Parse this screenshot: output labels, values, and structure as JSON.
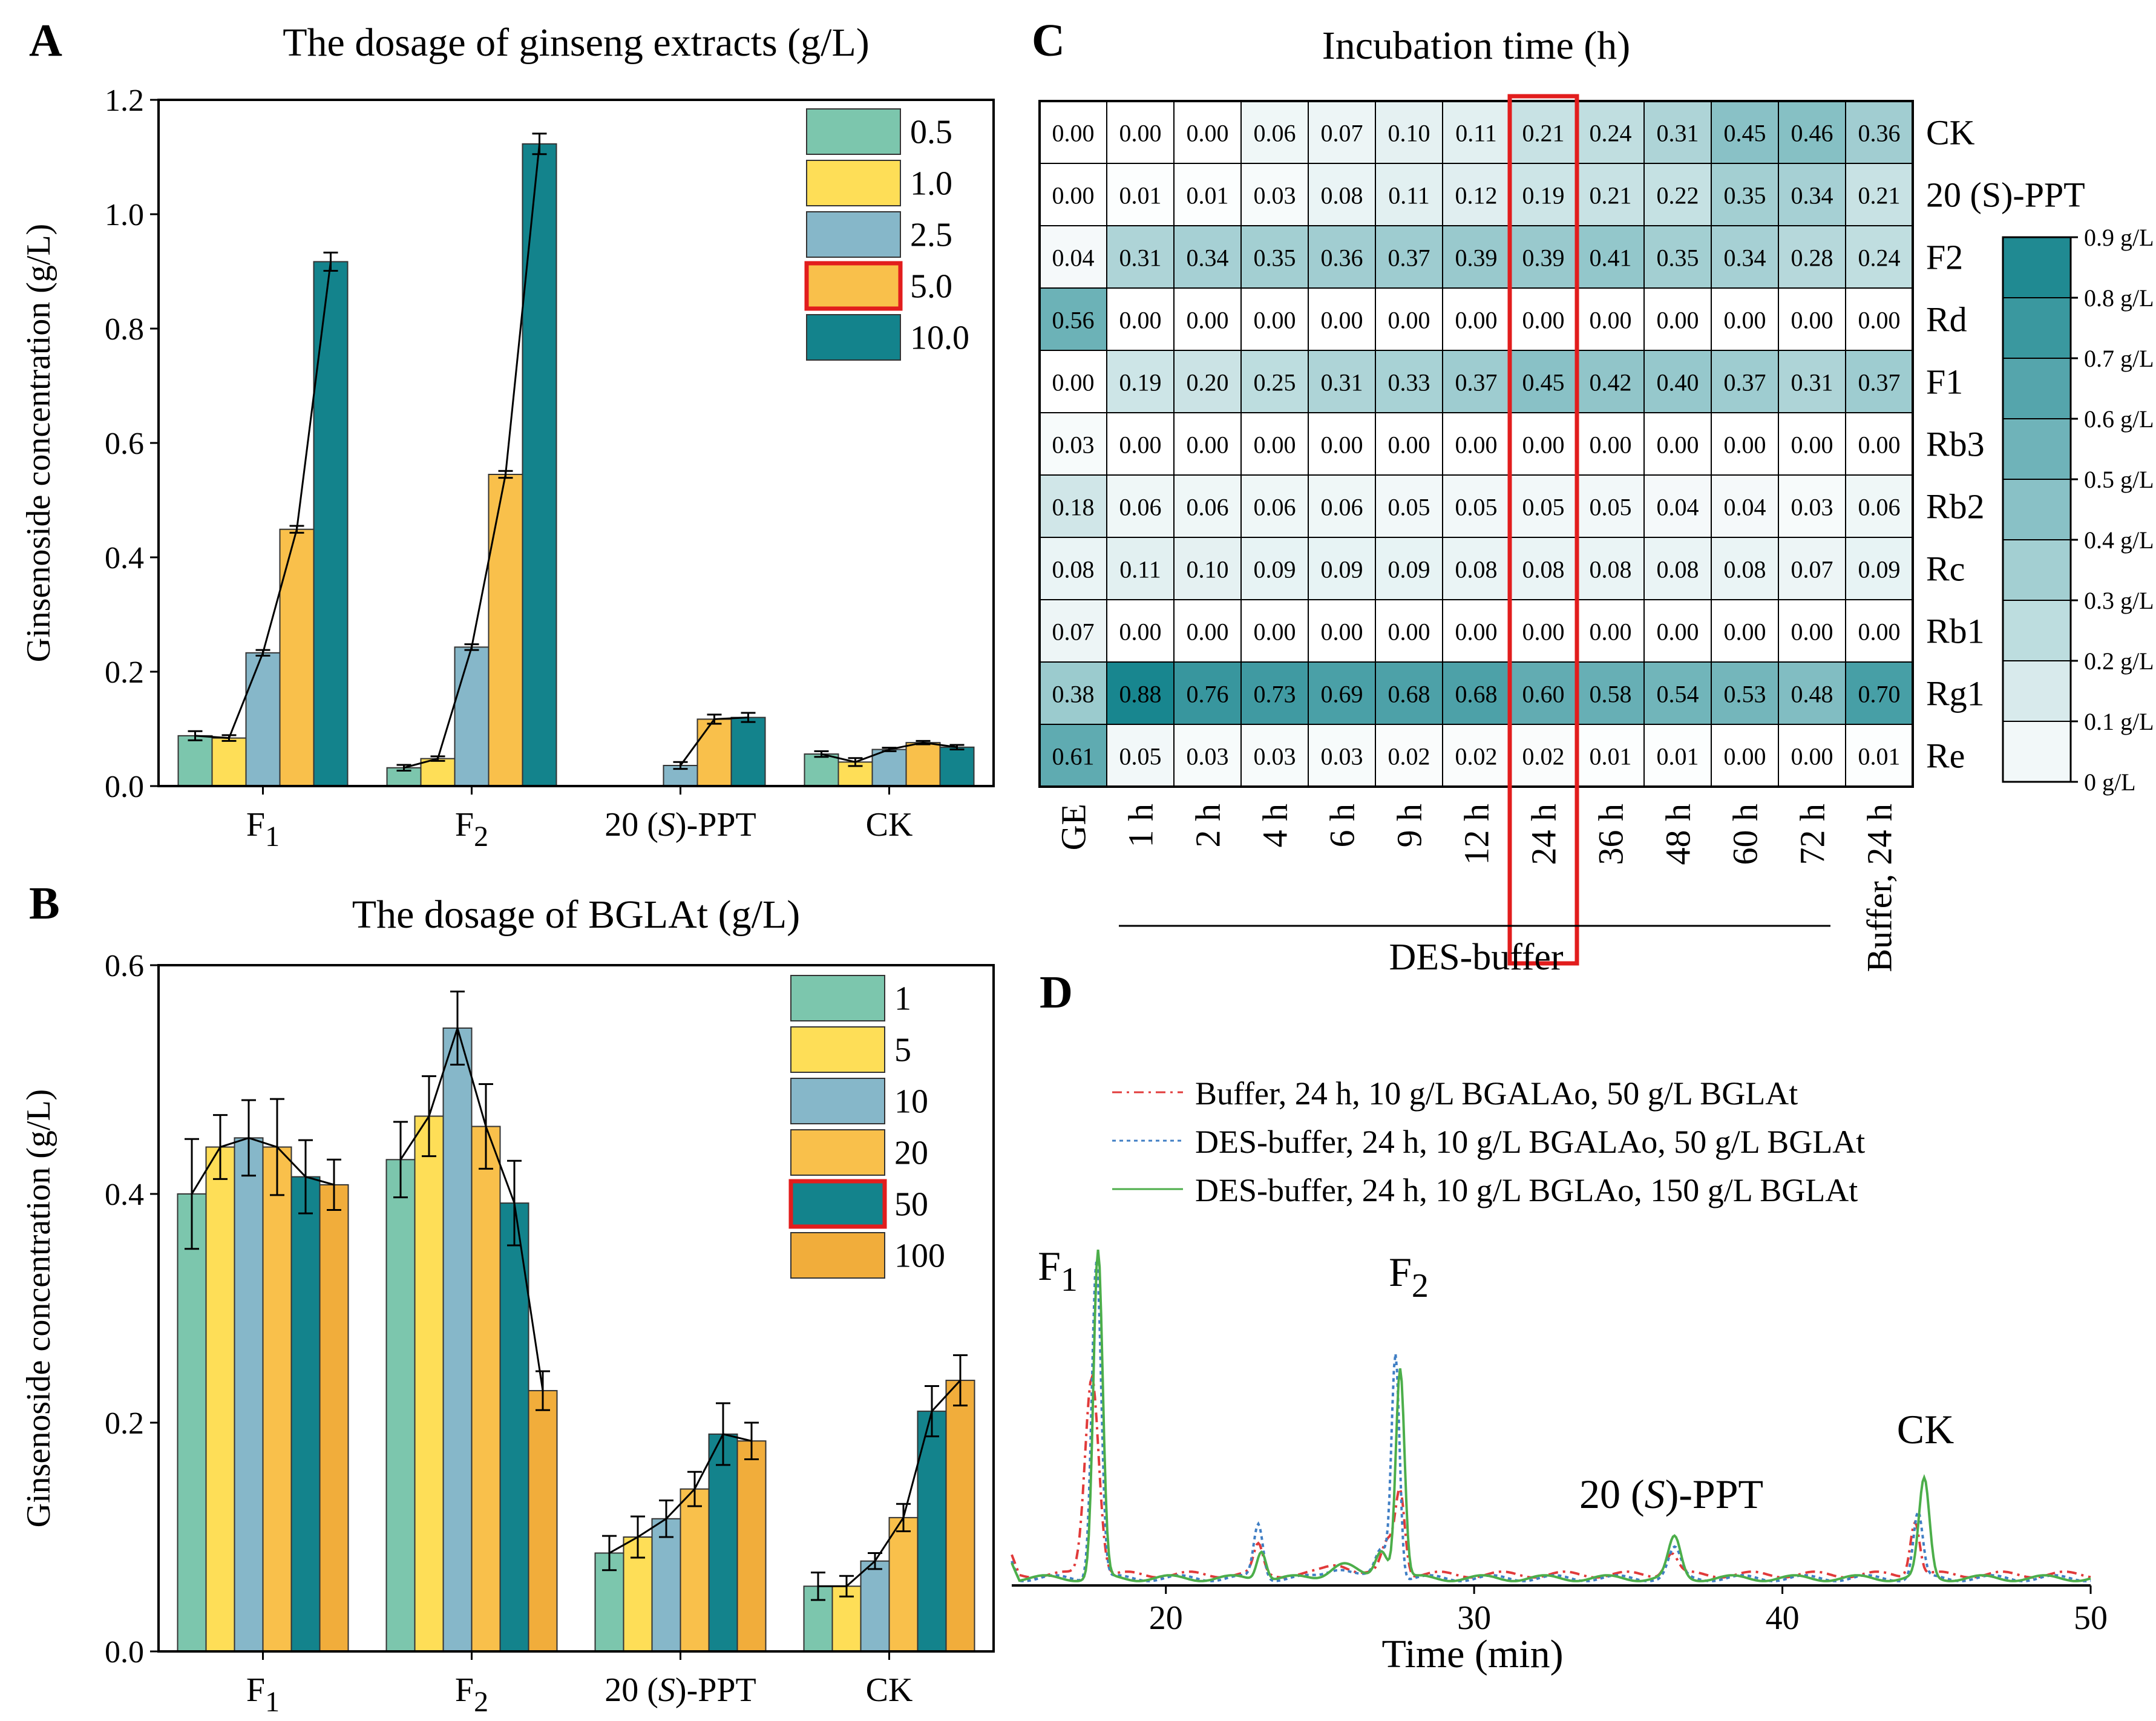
{
  "panel_labels": {
    "A": "A",
    "B": "B",
    "C": "C",
    "D": "D"
  },
  "colors": {
    "s1": "#7cc6ad",
    "s2": "#fede57",
    "s3": "#86b7c9",
    "s4": "#f9c04b",
    "s5": "#13838c",
    "s6": "#f1ad3b",
    "highlight": "#e21d1d",
    "heat_low": "#ffffff",
    "heat_high": "#13838c",
    "trace_buffer": "#e13a3a",
    "trace_des_dotted": "#3f7ec4",
    "trace_des_green": "#4cae4a",
    "label_f1": "#f39b38",
    "label_f2": "#4cae4a",
    "label_ppt": "#3f7ec4",
    "label_ck": "#e13a3a"
  },
  "chart_data": [
    {
      "id": "A",
      "type": "bar",
      "title": "The dosage of ginseng extracts (g/L)",
      "ylabel": "Ginsenoside concentration (g/L)",
      "xlabel": "",
      "ylim": [
        0,
        1.2
      ],
      "yticks": [
        "0.0",
        "0.2",
        "0.4",
        "0.6",
        "0.8",
        "1.0",
        "1.2"
      ],
      "categories": [
        {
          "main": "F",
          "sub": "1"
        },
        {
          "main": "F",
          "sub": "2"
        },
        {
          "main": "20 (",
          "ital": "S",
          "post": ")-PPT"
        },
        {
          "main": "CK"
        }
      ],
      "legend_position": "top-right",
      "highlight_series": 3,
      "series": [
        {
          "name": "0.5",
          "color_key": "s1",
          "values": [
            0.088,
            0.032,
            0.0,
            0.056
          ],
          "errors": [
            0.008,
            0.005,
            0.0,
            0.005
          ]
        },
        {
          "name": "1.0",
          "color_key": "s2",
          "values": [
            0.084,
            0.048,
            0.0,
            0.042
          ],
          "errors": [
            0.005,
            0.004,
            0.0,
            0.007
          ]
        },
        {
          "name": "2.5",
          "color_key": "s3",
          "values": [
            0.233,
            0.243,
            0.036,
            0.064
          ],
          "errors": [
            0.005,
            0.005,
            0.006,
            0.003
          ]
        },
        {
          "name": "5.0",
          "color_key": "s4",
          "values": [
            0.449,
            0.545,
            0.117,
            0.076
          ],
          "errors": [
            0.006,
            0.006,
            0.008,
            0.003
          ]
        },
        {
          "name": "10.0",
          "color_key": "s5",
          "values": [
            0.917,
            1.123,
            0.12,
            0.068
          ],
          "errors": [
            0.016,
            0.018,
            0.008,
            0.004
          ]
        }
      ]
    },
    {
      "id": "B",
      "type": "bar",
      "title": "The dosage of BGLAt (g/L)",
      "ylabel": "Ginsenoside concentration (g/L)",
      "xlabel": "",
      "ylim": [
        0,
        0.6
      ],
      "yticks": [
        "0.0",
        "0.2",
        "0.4",
        "0.6"
      ],
      "categories": [
        {
          "main": "F",
          "sub": "1"
        },
        {
          "main": "F",
          "sub": "2"
        },
        {
          "main": "20 (",
          "ital": "S",
          "post": ")-PPT"
        },
        {
          "main": "CK"
        }
      ],
      "legend_position": "top-right",
      "highlight_series": 4,
      "series": [
        {
          "name": "1",
          "color_key": "s1",
          "values": [
            0.4,
            0.43,
            0.086,
            0.057
          ],
          "errors": [
            0.048,
            0.033,
            0.015,
            0.012
          ]
        },
        {
          "name": "5",
          "color_key": "s2",
          "values": [
            0.441,
            0.468,
            0.1,
            0.057
          ],
          "errors": [
            0.028,
            0.035,
            0.018,
            0.009
          ]
        },
        {
          "name": "10",
          "color_key": "s3",
          "values": [
            0.449,
            0.545,
            0.116,
            0.079
          ],
          "errors": [
            0.033,
            0.032,
            0.016,
            0.007
          ]
        },
        {
          "name": "20",
          "color_key": "s4",
          "values": [
            0.441,
            0.459,
            0.142,
            0.117
          ],
          "errors": [
            0.042,
            0.037,
            0.015,
            0.012
          ]
        },
        {
          "name": "50",
          "color_key": "s5",
          "values": [
            0.415,
            0.392,
            0.19,
            0.21
          ],
          "errors": [
            0.032,
            0.037,
            0.027,
            0.022
          ]
        },
        {
          "name": "100",
          "color_key": "s6",
          "values": [
            0.408,
            0.228,
            0.184,
            0.237
          ],
          "errors": [
            0.022,
            0.017,
            0.016,
            0.022
          ]
        }
      ]
    },
    {
      "id": "C",
      "type": "heatmap",
      "title": "Incubation time (h)",
      "columns": [
        "GE",
        "1 h",
        "2 h",
        "4 h",
        "6 h",
        "9 h",
        "12 h",
        "24 h",
        "36 h",
        "48 h",
        "60 h",
        "72 h",
        "Buffer, 24 h"
      ],
      "group_label": "DES-buffer",
      "highlight_column": 7,
      "rows": [
        {
          "name": "CK",
          "values": [
            "0.00",
            "0.00",
            "0.00",
            "0.06",
            "0.07",
            "0.10",
            "0.11",
            "0.21",
            "0.24",
            "0.31",
            "0.45",
            "0.46",
            "0.36"
          ]
        },
        {
          "name": "20 (S)-PPT",
          "values": [
            "0.00",
            "0.01",
            "0.01",
            "0.03",
            "0.08",
            "0.11",
            "0.12",
            "0.19",
            "0.21",
            "0.22",
            "0.35",
            "0.34",
            "0.21"
          ]
        },
        {
          "name": "F2",
          "values": [
            "0.04",
            "0.31",
            "0.34",
            "0.35",
            "0.36",
            "0.37",
            "0.39",
            "0.39",
            "0.41",
            "0.35",
            "0.34",
            "0.28",
            "0.24"
          ]
        },
        {
          "name": "Rd",
          "values": [
            "0.56",
            "0.00",
            "0.00",
            "0.00",
            "0.00",
            "0.00",
            "0.00",
            "0.00",
            "0.00",
            "0.00",
            "0.00",
            "0.00",
            "0.00"
          ]
        },
        {
          "name": "F1",
          "values": [
            "0.00",
            "0.19",
            "0.20",
            "0.25",
            "0.31",
            "0.33",
            "0.37",
            "0.45",
            "0.42",
            "0.40",
            "0.37",
            "0.31",
            "0.37"
          ]
        },
        {
          "name": "Rb3",
          "values": [
            "0.03",
            "0.00",
            "0.00",
            "0.00",
            "0.00",
            "0.00",
            "0.00",
            "0.00",
            "0.00",
            "0.00",
            "0.00",
            "0.00",
            "0.00"
          ]
        },
        {
          "name": "Rb2",
          "values": [
            "0.18",
            "0.06",
            "0.06",
            "0.06",
            "0.06",
            "0.05",
            "0.05",
            "0.05",
            "0.05",
            "0.04",
            "0.04",
            "0.03",
            "0.06"
          ]
        },
        {
          "name": "Rc",
          "values": [
            "0.08",
            "0.11",
            "0.10",
            "0.09",
            "0.09",
            "0.09",
            "0.08",
            "0.08",
            "0.08",
            "0.08",
            "0.08",
            "0.07",
            "0.09"
          ]
        },
        {
          "name": "Rb1",
          "values": [
            "0.07",
            "0.00",
            "0.00",
            "0.00",
            "0.00",
            "0.00",
            "0.00",
            "0.00",
            "0.00",
            "0.00",
            "0.00",
            "0.00",
            "0.00"
          ]
        },
        {
          "name": "Rg1",
          "values": [
            "0.38",
            "0.88",
            "0.76",
            "0.73",
            "0.69",
            "0.68",
            "0.68",
            "0.60",
            "0.58",
            "0.54",
            "0.53",
            "0.48",
            "0.70"
          ]
        },
        {
          "name": "Re",
          "values": [
            "0.61",
            "0.05",
            "0.03",
            "0.03",
            "0.03",
            "0.02",
            "0.02",
            "0.02",
            "0.01",
            "0.01",
            "0.00",
            "0.00",
            "0.01"
          ]
        }
      ],
      "colorbar": {
        "range": [
          0,
          0.9
        ],
        "labels": [
          "0 g/L",
          "0.1 g/L",
          "0.2 g/L",
          "0.3 g/L",
          "0.4 g/L",
          "0.5 g/L",
          "0.6 g/L",
          "0.7 g/L",
          "0.8 g/L",
          "0.9 g/L"
        ]
      }
    },
    {
      "id": "D",
      "type": "line",
      "xlabel": "Time (min)",
      "xlim": [
        15,
        50
      ],
      "xticks": [
        20,
        30,
        40,
        50
      ],
      "legend": [
        {
          "name": "Buffer, 24 h, 10 g/L BGALAo, 50 g/L BGLAt",
          "color_key": "trace_buffer",
          "style": "dashdot"
        },
        {
          "name": "DES-buffer, 24 h, 10 g/L BGALAo, 50 g/L BGLAt",
          "color_key": "trace_des_dotted",
          "style": "dotted"
        },
        {
          "name": "DES-buffer, 24 h, 10 g/L BGLAo, 150 g/L BGLAt",
          "color_key": "trace_des_green",
          "style": "solid"
        }
      ],
      "series": [
        {
          "name": "buffer",
          "baseline": 0.03,
          "peaks": [
            [
              17.6,
              0.55,
              0.22
            ],
            [
              23.0,
              0.08,
              0.15
            ],
            [
              25.6,
              0.03,
              0.4
            ],
            [
              27.2,
              0.09,
              0.2
            ],
            [
              27.6,
              0.23,
              0.15
            ],
            [
              36.4,
              0.06,
              0.2
            ],
            [
              44.3,
              0.15,
              0.15
            ]
          ]
        },
        {
          "name": "des_dotted",
          "baseline": 0.02,
          "peaks": [
            [
              17.75,
              0.88,
              0.15
            ],
            [
              23.0,
              0.15,
              0.15
            ],
            [
              25.6,
              0.03,
              0.4
            ],
            [
              27.0,
              0.08,
              0.2
            ],
            [
              27.45,
              0.62,
              0.13
            ],
            [
              36.5,
              0.08,
              0.2
            ],
            [
              44.4,
              0.18,
              0.15
            ]
          ]
        },
        {
          "name": "des_green",
          "baseline": 0.02,
          "peaks": [
            [
              17.8,
              0.9,
              0.15
            ],
            [
              23.1,
              0.08,
              0.15
            ],
            [
              25.7,
              0.04,
              0.4
            ],
            [
              27.0,
              0.08,
              0.2
            ],
            [
              27.6,
              0.58,
              0.14
            ],
            [
              36.5,
              0.11,
              0.2
            ],
            [
              44.6,
              0.27,
              0.17
            ]
          ]
        }
      ],
      "peak_labels": [
        {
          "text": "F",
          "sub": "1",
          "color_key": "label_f1"
        },
        {
          "text": "F",
          "sub": "2",
          "color_key": "label_f2"
        },
        {
          "text": "20 (",
          "ital": "S",
          "post": ")-PPT",
          "color_key": "label_ppt"
        },
        {
          "text": "CK",
          "color_key": "label_ck"
        }
      ]
    }
  ]
}
